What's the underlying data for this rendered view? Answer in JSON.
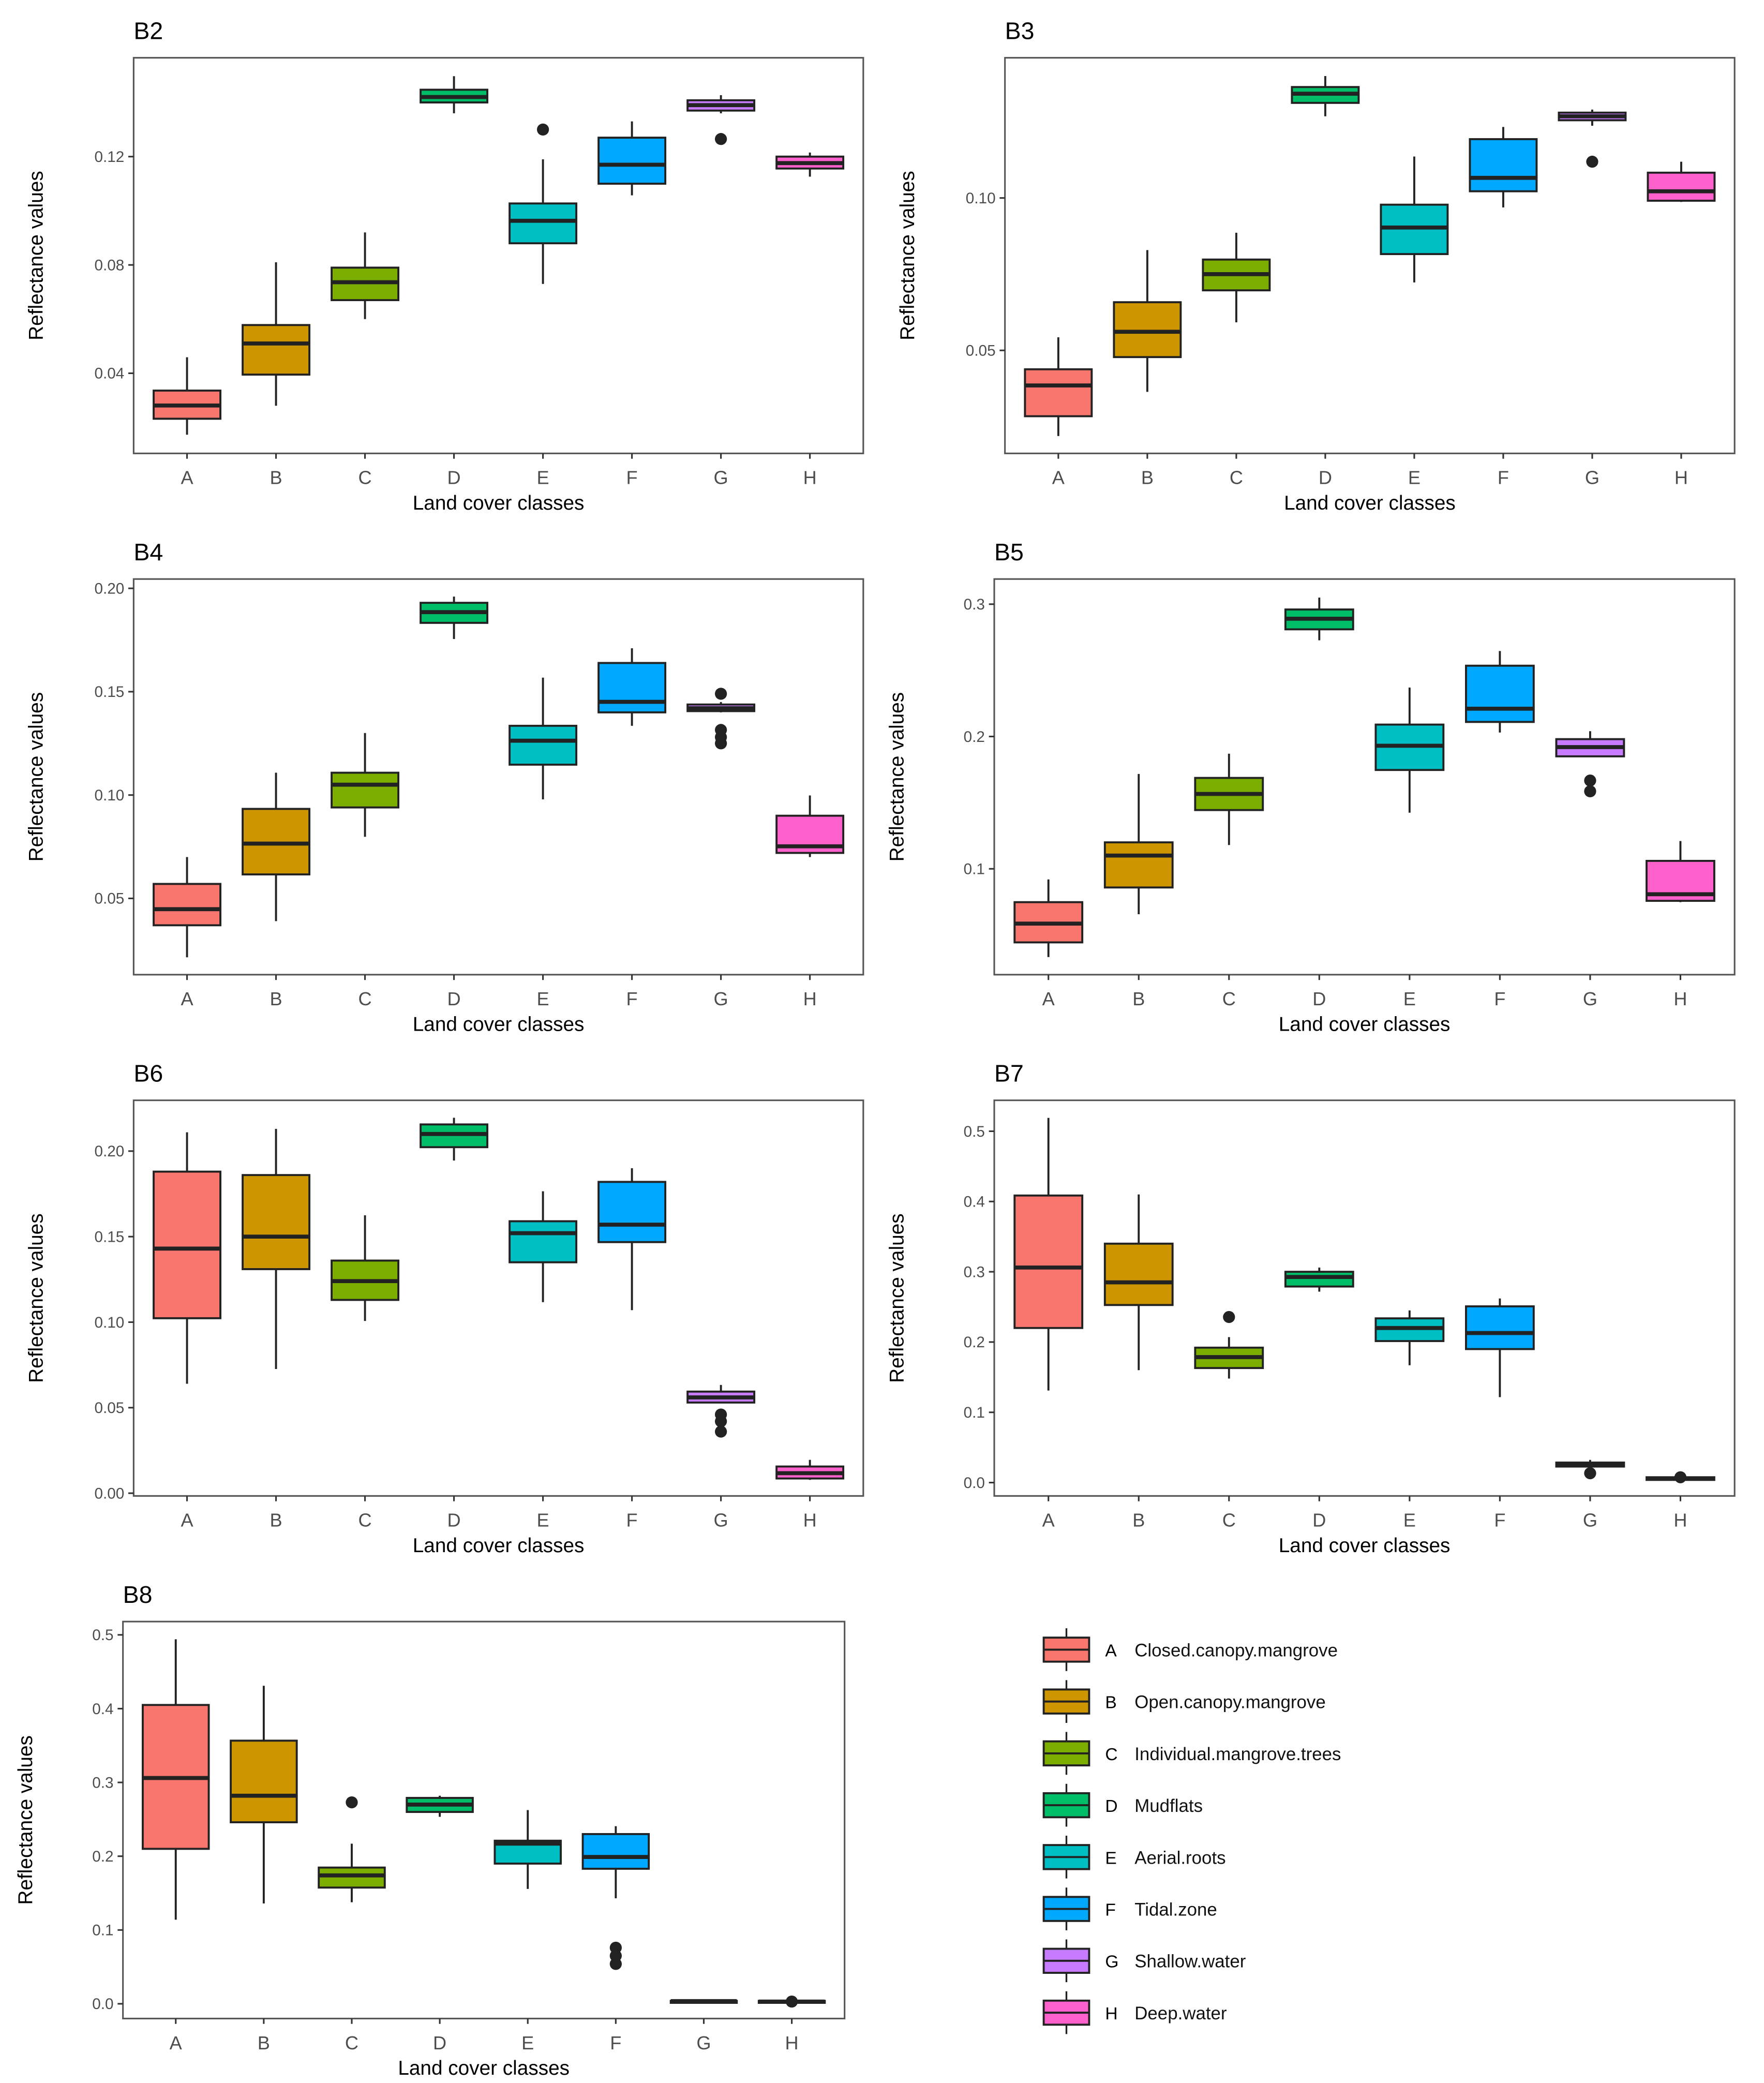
{
  "chart_data": {
    "type": "boxplot",
    "categories": [
      "A",
      "B",
      "C",
      "D",
      "E",
      "F",
      "G",
      "H"
    ],
    "xlabel": "Land cover classes",
    "ylabel": "Reflectance values",
    "colors": [
      "#F8766D",
      "#CD9600",
      "#7CAE00",
      "#00BE67",
      "#00BFC4",
      "#00A9FF",
      "#C77CFF",
      "#FF61CC"
    ],
    "legend": {
      "placement": "bottom-right",
      "entries": [
        {
          "key": "A",
          "label": "Closed.canopy.mangrove"
        },
        {
          "key": "B",
          "label": "Open.canopy.mangrove"
        },
        {
          "key": "C",
          "label": "Individual.mangrove.trees"
        },
        {
          "key": "D",
          "label": "Mudflats"
        },
        {
          "key": "E",
          "label": "Aerial.roots"
        },
        {
          "key": "F",
          "label": "Tidal.zone"
        },
        {
          "key": "G",
          "label": "Shallow.water"
        },
        {
          "key": "H",
          "label": "Deep.water"
        }
      ]
    },
    "panels": [
      {
        "title": "B2",
        "ylim": [
          0.0104,
          0.1565
        ],
        "yticks": [
          0.04,
          0.08,
          0.12
        ],
        "ytick_labels": [
          "0.04",
          "0.08",
          "0.12"
        ],
        "boxes": [
          {
            "stats": [
              0.0173,
              0.0232,
              0.0281,
              0.0336,
              0.0459
            ],
            "outliers": []
          },
          {
            "stats": [
              0.028,
              0.0395,
              0.051,
              0.0578,
              0.081
            ],
            "outliers": []
          },
          {
            "stats": [
              0.06,
              0.067,
              0.0736,
              0.079,
              0.092
            ],
            "outliers": []
          },
          {
            "stats": [
              0.136,
              0.14,
              0.142,
              0.1447,
              0.1497
            ],
            "outliers": []
          },
          {
            "stats": [
              0.073,
              0.088,
              0.0963,
              0.1027,
              0.119
            ],
            "outliers": [
              0.13
            ]
          },
          {
            "stats": [
              0.1057,
              0.11,
              0.117,
              0.127,
              0.133
            ],
            "outliers": []
          },
          {
            "stats": [
              0.136,
              0.137,
              0.139,
              0.1408,
              0.1427
            ],
            "outliers": [
              0.1265
            ]
          },
          {
            "stats": [
              0.1126,
              0.1156,
              0.1176,
              0.12,
              0.1215
            ],
            "outliers": []
          }
        ]
      },
      {
        "title": "B3",
        "ylim": [
          0.0162,
          0.146
        ],
        "yticks": [
          0.05,
          0.1
        ],
        "ytick_labels": [
          "0.05",
          "0.10"
        ],
        "boxes": [
          {
            "stats": [
              0.0219,
              0.0284,
              0.0385,
              0.0438,
              0.0543
            ],
            "outliers": []
          },
          {
            "stats": [
              0.0364,
              0.0478,
              0.0561,
              0.0658,
              0.0829
            ],
            "outliers": []
          },
          {
            "stats": [
              0.0592,
              0.0697,
              0.075,
              0.0798,
              0.0886
            ],
            "outliers": []
          },
          {
            "stats": [
              0.1268,
              0.1312,
              0.1342,
              0.1364,
              0.14
            ],
            "outliers": []
          },
          {
            "stats": [
              0.0723,
              0.0816,
              0.0903,
              0.0978,
              0.1136
            ],
            "outliers": []
          },
          {
            "stats": [
              0.0969,
              0.1022,
              0.1066,
              0.1193,
              0.1233
            ],
            "outliers": []
          },
          {
            "stats": [
              0.1237,
              0.1255,
              0.1268,
              0.128,
              0.129
            ],
            "outliers": [
              0.1119
            ]
          },
          {
            "stats": [
              0.0987,
              0.0991,
              0.1022,
              0.1083,
              0.1119
            ],
            "outliers": []
          }
        ]
      },
      {
        "title": "B4",
        "ylim": [
          0.0131,
          0.2045
        ],
        "yticks": [
          0.05,
          0.1,
          0.15,
          0.2
        ],
        "ytick_labels": [
          "0.05",
          "0.10",
          "0.15",
          "0.20"
        ],
        "boxes": [
          {
            "stats": [
              0.0215,
              0.037,
              0.0448,
              0.057,
              0.07
            ],
            "outliers": []
          },
          {
            "stats": [
              0.039,
              0.0616,
              0.0765,
              0.0933,
              0.1108
            ],
            "outliers": []
          },
          {
            "stats": [
              0.0798,
              0.094,
              0.105,
              0.1108,
              0.13
            ],
            "outliers": []
          },
          {
            "stats": [
              0.1755,
              0.1833,
              0.1885,
              0.193,
              0.196
            ],
            "outliers": []
          },
          {
            "stats": [
              0.0979,
              0.1147,
              0.1263,
              0.1335,
              0.1568
            ],
            "outliers": []
          },
          {
            "stats": [
              0.1335,
              0.14,
              0.1451,
              0.1639,
              0.171
            ],
            "outliers": []
          },
          {
            "stats": [
              0.14,
              0.1406,
              0.142,
              0.1438,
              0.145
            ],
            "outliers": [
              0.149,
              0.1315,
              0.128,
              0.125
            ]
          },
          {
            "stats": [
              0.07,
              0.072,
              0.0752,
              0.09,
              0.0998
            ],
            "outliers": []
          }
        ]
      },
      {
        "title": "B5",
        "ylim": [
          0.02,
          0.319
        ],
        "yticks": [
          0.1,
          0.2,
          0.3
        ],
        "ytick_labels": [
          "0.1",
          "0.2",
          "0.3"
        ],
        "boxes": [
          {
            "stats": [
              0.0333,
              0.0444,
              0.0586,
              0.0748,
              0.092
            ],
            "outliers": []
          },
          {
            "stats": [
              0.0657,
              0.0859,
              0.11,
              0.12,
              0.1717
            ],
            "outliers": []
          },
          {
            "stats": [
              0.118,
              0.1444,
              0.1566,
              0.1687,
              0.187
            ],
            "outliers": []
          },
          {
            "stats": [
              0.2727,
              0.281,
              0.289,
              0.296,
              0.305
            ],
            "outliers": []
          },
          {
            "stats": [
              0.1424,
              0.1747,
              0.193,
              0.209,
              0.237
            ],
            "outliers": []
          },
          {
            "stats": [
              0.203,
              0.211,
              0.221,
              0.2535,
              0.2646
            ],
            "outliers": []
          },
          {
            "stats": [
              0.185,
              0.185,
              0.192,
              0.198,
              0.204
            ],
            "outliers": [
              0.1667,
              0.1586
            ]
          },
          {
            "stats": [
              0.0748,
              0.0758,
              0.0808,
              0.106,
              0.121
            ],
            "outliers": []
          }
        ]
      },
      {
        "title": "B6",
        "ylim": [
          -0.0016,
          0.2297
        ],
        "yticks": [
          0.0,
          0.05,
          0.1,
          0.15,
          0.2
        ],
        "ytick_labels": [
          "0.00",
          "0.05",
          "0.10",
          "0.15",
          "0.20"
        ],
        "boxes": [
          {
            "stats": [
              0.064,
              0.1023,
              0.143,
              0.188,
              0.211
            ],
            "outliers": []
          },
          {
            "stats": [
              0.0726,
              0.131,
              0.15,
              0.186,
              0.213
            ],
            "outliers": []
          },
          {
            "stats": [
              0.1007,
              0.113,
              0.124,
              0.136,
              0.1625
            ],
            "outliers": []
          },
          {
            "stats": [
              0.1945,
              0.2023,
              0.21,
              0.2156,
              0.2195
            ],
            "outliers": []
          },
          {
            "stats": [
              0.1117,
              0.135,
              0.152,
              0.159,
              0.1765
            ],
            "outliers": []
          },
          {
            "stats": [
              0.107,
              0.1468,
              0.157,
              0.182,
              0.19
            ],
            "outliers": []
          },
          {
            "stats": [
              0.053,
              0.053,
              0.056,
              0.0594,
              0.0633
            ],
            "outliers": [
              0.046,
              0.042,
              0.036
            ]
          },
          {
            "stats": [
              0.0078,
              0.0086,
              0.0117,
              0.0156,
              0.0195
            ],
            "outliers": []
          }
        ]
      },
      {
        "title": "B7",
        "ylim": [
          -0.019,
          0.544
        ],
        "yticks": [
          0.0,
          0.1,
          0.2,
          0.3,
          0.4,
          0.5
        ],
        "ytick_labels": [
          "0.0",
          "0.1",
          "0.2",
          "0.3",
          "0.4",
          "0.5"
        ],
        "boxes": [
          {
            "stats": [
              0.131,
              0.22,
              0.306,
              0.4085,
              0.519
            ],
            "outliers": []
          },
          {
            "stats": [
              0.16,
              0.2527,
              0.285,
              0.34,
              0.41
            ],
            "outliers": []
          },
          {
            "stats": [
              0.148,
              0.163,
              0.1786,
              0.192,
              0.207
            ],
            "outliers": [
              0.2356
            ]
          },
          {
            "stats": [
              0.2717,
              0.279,
              0.2926,
              0.3,
              0.306
            ],
            "outliers": []
          },
          {
            "stats": [
              0.167,
              0.2014,
              0.22,
              0.2337,
              0.245
            ],
            "outliers": []
          },
          {
            "stats": [
              0.1216,
              0.19,
              0.2128,
              0.2508,
              0.262
            ],
            "outliers": []
          },
          {
            "stats": [
              0.0247,
              0.0228,
              0.0266,
              0.0285,
              0.0323
            ],
            "outliers": [
              0.0133
            ]
          },
          {
            "stats": [
              0.0038,
              0.0038,
              0.0057,
              0.0076,
              0.0095
            ],
            "outliers": [
              0.0076
            ]
          }
        ]
      },
      {
        "title": "B8",
        "ylim": [
          -0.02,
          0.518
        ],
        "yticks": [
          0.0,
          0.1,
          0.2,
          0.3,
          0.4,
          0.5
        ],
        "ytick_labels": [
          "0.0",
          "0.1",
          "0.2",
          "0.3",
          "0.4",
          "0.5"
        ],
        "boxes": [
          {
            "stats": [
              0.114,
              0.21,
              0.306,
              0.405,
              0.494
            ],
            "outliers": []
          },
          {
            "stats": [
              0.136,
              0.246,
              0.282,
              0.3566,
              0.431
            ],
            "outliers": []
          },
          {
            "stats": [
              0.1376,
              0.1575,
              0.174,
              0.1846,
              0.217
            ],
            "outliers": [
              0.273
            ]
          },
          {
            "stats": [
              0.2534,
              0.26,
              0.27,
              0.279,
              0.282
            ],
            "outliers": []
          },
          {
            "stats": [
              0.1557,
              0.19,
              0.217,
              0.221,
              0.2625
            ],
            "outliers": []
          },
          {
            "stats": [
              0.143,
              0.183,
              0.199,
              0.23,
              0.2407
            ],
            "outliers": [
              0.076,
              0.065,
              0.054
            ]
          },
          {
            "stats": [
              0.002,
              0.003,
              0.0036,
              0.004,
              0.005
            ],
            "outliers": []
          },
          {
            "stats": [
              0.001,
              0.002,
              0.003,
              0.004,
              0.005
            ],
            "outliers": [
              0.003
            ]
          }
        ]
      }
    ]
  }
}
